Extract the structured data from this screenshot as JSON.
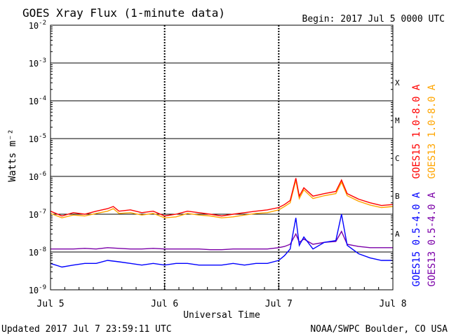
{
  "header": {
    "title": "GOES Xray Flux (1-minute data)",
    "begin": "Begin:  2017 Jul 5 0000 UTC"
  },
  "footer": {
    "updated": "Updated 2017 Jul  7 23:59:11 UTC",
    "source": "NOAA/SWPC Boulder, CO USA"
  },
  "chart_data": {
    "type": "line",
    "title": "GOES Xray Flux (1-minute data)",
    "xlabel": "Universal Time",
    "ylabel": "Watts m⁻²",
    "y_scale": "log",
    "ylim": [
      1e-09,
      0.01
    ],
    "xlim_days": [
      0,
      3
    ],
    "x_tick_labels": [
      "Jul 5",
      "Jul 6",
      "Jul 7",
      "Jul 8"
    ],
    "y_ticks": [
      {
        "value": 0.01,
        "base": "10",
        "exp": "-2"
      },
      {
        "value": 0.001,
        "base": "10",
        "exp": "-3"
      },
      {
        "value": 0.0001,
        "base": "10",
        "exp": "-4"
      },
      {
        "value": 1e-05,
        "base": "10",
        "exp": "-5"
      },
      {
        "value": 1e-06,
        "base": "10",
        "exp": "-6"
      },
      {
        "value": 1e-07,
        "base": "10",
        "exp": "-7"
      },
      {
        "value": 1e-08,
        "base": "10",
        "exp": "-8"
      },
      {
        "value": 1e-09,
        "base": "10",
        "exp": "-9"
      }
    ],
    "flare_classes": [
      {
        "label": "X",
        "value": 0.0003
      },
      {
        "label": "M",
        "value": 3e-05
      },
      {
        "label": "C",
        "value": 3e-06
      },
      {
        "label": "B",
        "value": 3e-07
      },
      {
        "label": "A",
        "value": 3e-08
      }
    ],
    "grid": true,
    "series": [
      {
        "name": "GOES15 1.0-8.0 A",
        "color": "#ff0000",
        "x": [
          0,
          0.1,
          0.2,
          0.3,
          0.4,
          0.5,
          0.55,
          0.6,
          0.7,
          0.8,
          0.9,
          1.0,
          1.1,
          1.2,
          1.3,
          1.4,
          1.5,
          1.6,
          1.7,
          1.8,
          1.9,
          2.0,
          2.05,
          2.1,
          2.15,
          2.18,
          2.22,
          2.3,
          2.4,
          2.5,
          2.55,
          2.6,
          2.7,
          2.8,
          2.9,
          3.0
        ],
        "y": [
          1.2e-07,
          9e-08,
          1.1e-07,
          1e-07,
          1.2e-07,
          1.4e-07,
          1.6e-07,
          1.2e-07,
          1.3e-07,
          1.1e-07,
          1.2e-07,
          9e-08,
          1e-07,
          1.2e-07,
          1.1e-07,
          1e-07,
          9e-08,
          1e-07,
          1.1e-07,
          1.2e-07,
          1.3e-07,
          1.5e-07,
          1.8e-07,
          2.3e-07,
          9e-07,
          3e-07,
          5e-07,
          3e-07,
          3.5e-07,
          4e-07,
          8e-07,
          3.5e-07,
          2.5e-07,
          2e-07,
          1.7e-07,
          1.8e-07
        ]
      },
      {
        "name": "GOES13 1.0-8.0 A",
        "color": "#ffa500",
        "x": [
          0,
          0.1,
          0.2,
          0.3,
          0.4,
          0.5,
          0.55,
          0.6,
          0.7,
          0.8,
          0.9,
          1.0,
          1.1,
          1.2,
          1.3,
          1.4,
          1.5,
          1.6,
          1.7,
          1.8,
          1.9,
          2.0,
          2.05,
          2.1,
          2.15,
          2.18,
          2.22,
          2.3,
          2.4,
          2.5,
          2.55,
          2.6,
          2.7,
          2.8,
          2.9,
          3.0
        ],
        "y": [
          1.05e-07,
          8e-08,
          9.5e-08,
          9e-08,
          1.05e-07,
          1.2e-07,
          1.4e-07,
          1.05e-07,
          1.1e-07,
          9.5e-08,
          1.05e-07,
          8e-08,
          8.5e-08,
          1.05e-07,
          9.5e-08,
          9e-08,
          8e-08,
          8.5e-08,
          9.5e-08,
          1.05e-07,
          1.1e-07,
          1.3e-07,
          1.6e-07,
          2e-07,
          8e-07,
          2.6e-07,
          4.4e-07,
          2.6e-07,
          3.1e-07,
          3.5e-07,
          7e-07,
          3.1e-07,
          2.2e-07,
          1.75e-07,
          1.5e-07,
          1.6e-07
        ]
      },
      {
        "name": "GOES15 0.5-4.0 A",
        "color": "#0000ff",
        "x": [
          0,
          0.1,
          0.2,
          0.3,
          0.4,
          0.5,
          0.6,
          0.7,
          0.8,
          0.9,
          1.0,
          1.1,
          1.2,
          1.3,
          1.4,
          1.5,
          1.6,
          1.7,
          1.8,
          1.9,
          2.0,
          2.05,
          2.1,
          2.15,
          2.18,
          2.22,
          2.3,
          2.4,
          2.5,
          2.55,
          2.6,
          2.7,
          2.8,
          2.9,
          3.0
        ],
        "y": [
          5e-09,
          4e-09,
          4.5e-09,
          5e-09,
          5e-09,
          6e-09,
          5.5e-09,
          5e-09,
          4.5e-09,
          5e-09,
          4.5e-09,
          5e-09,
          5e-09,
          4.5e-09,
          4.5e-09,
          4.5e-09,
          5e-09,
          4.5e-09,
          5e-09,
          5e-09,
          6e-09,
          8e-09,
          1.2e-08,
          8e-08,
          1.5e-08,
          2.5e-08,
          1.2e-08,
          1.8e-08,
          2e-08,
          1e-07,
          1.5e-08,
          9e-09,
          7e-09,
          6e-09,
          6e-09
        ]
      },
      {
        "name": "GOES13 0.5-4.0 A",
        "color": "#7b00a8",
        "x": [
          0,
          0.1,
          0.2,
          0.3,
          0.4,
          0.5,
          0.6,
          0.7,
          0.8,
          0.9,
          1.0,
          1.1,
          1.2,
          1.3,
          1.4,
          1.5,
          1.6,
          1.7,
          1.8,
          1.9,
          2.0,
          2.05,
          2.1,
          2.15,
          2.18,
          2.22,
          2.3,
          2.4,
          2.5,
          2.55,
          2.6,
          2.7,
          2.8,
          2.9,
          3.0
        ],
        "y": [
          1.2e-08,
          1.2e-08,
          1.2e-08,
          1.25e-08,
          1.2e-08,
          1.3e-08,
          1.25e-08,
          1.2e-08,
          1.2e-08,
          1.25e-08,
          1.2e-08,
          1.2e-08,
          1.2e-08,
          1.2e-08,
          1.15e-08,
          1.15e-08,
          1.2e-08,
          1.2e-08,
          1.2e-08,
          1.2e-08,
          1.3e-08,
          1.4e-08,
          1.6e-08,
          3e-08,
          1.8e-08,
          2.2e-08,
          1.6e-08,
          1.8e-08,
          1.9e-08,
          3.5e-08,
          1.6e-08,
          1.4e-08,
          1.3e-08,
          1.3e-08,
          1.3e-08
        ]
      }
    ]
  }
}
